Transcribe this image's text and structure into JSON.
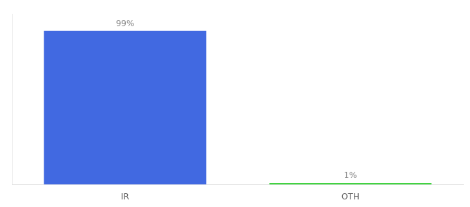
{
  "chart_data": {
    "type": "bar",
    "categories": [
      "IR",
      "OTH"
    ],
    "values": [
      99,
      1
    ],
    "value_labels": [
      "99%",
      "1%"
    ],
    "data_labels": true,
    "colors": [
      "#4169E1",
      "#22CC22"
    ],
    "ylim": [
      0,
      110
    ],
    "grid": false,
    "tick_labels": "x"
  }
}
